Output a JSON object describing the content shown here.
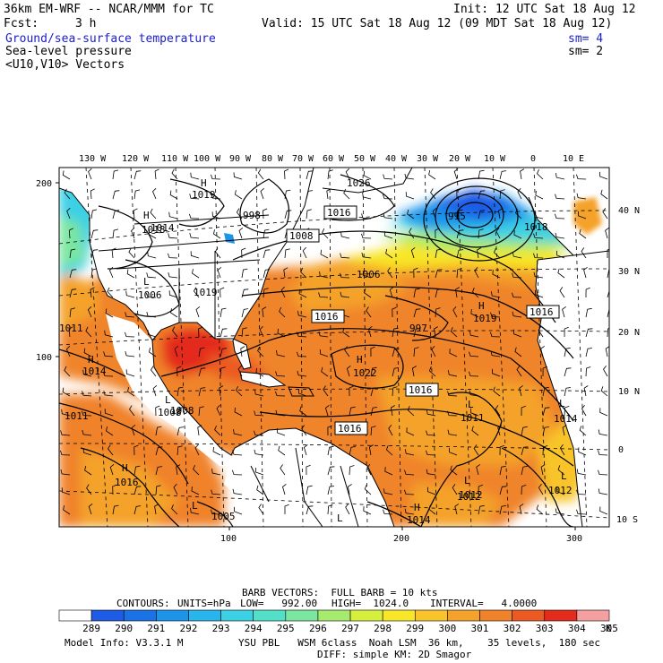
{
  "header": {
    "model": "36km EM-WRF -- NCAR/MMM for TC",
    "fcst_label": "Fcst:",
    "fcst_value": "3 h",
    "init": "Init: 12 UTC Sat 18 Aug 12",
    "valid": "Valid: 15 UTC Sat 18 Aug 12 (09 MDT Sat 18 Aug 12)",
    "fields": [
      {
        "name": "Ground/sea-surface temperature",
        "sm": "sm= 4",
        "color": "#1c1cd0"
      },
      {
        "name": "Sea-level pressure",
        "sm": "sm= 2",
        "color": "#000000"
      },
      {
        "name": "<U10,V10> Vectors",
        "sm": "",
        "color": "#000000"
      }
    ]
  },
  "map": {
    "top_lon_labels": [
      "130 W",
      "120 W",
      "110 W",
      "100 W",
      "90 W",
      "80 W",
      "70 W",
      "60 W",
      "50 W",
      "40 W",
      "30 W",
      "20 W",
      "10 W",
      "0",
      "10 E"
    ],
    "right_lat_labels": [
      "40 N",
      "30 N",
      "20 N",
      "10 N",
      "0",
      "10 S"
    ],
    "left_grid_labels": [
      "200",
      "100"
    ],
    "bottom_grid_labels": [
      "100",
      "200",
      "300"
    ],
    "pressure_highs": [
      {
        "label": "H",
        "value": "1019"
      },
      {
        "label": "H",
        "value": "1018"
      },
      {
        "label": "H",
        "value": "1019"
      },
      {
        "label": "H",
        "value": "1022"
      },
      {
        "label": "H",
        "value": "1014"
      },
      {
        "label": "H",
        "value": "1016"
      },
      {
        "label": "H",
        "value": "1014"
      }
    ],
    "pressure_lows": [
      {
        "label": "L",
        "value": "1006"
      },
      {
        "label": "L",
        "value": "1011"
      },
      {
        "label": "L",
        "value": "1008"
      },
      {
        "label": "L",
        "value": "1011"
      },
      {
        "label": "L",
        "value": "1014"
      },
      {
        "label": "L",
        "value": "1012"
      },
      {
        "label": "L",
        "value": "1012"
      },
      {
        "label": "L",
        "value": "1011"
      },
      {
        "label": "L",
        "value": "1005"
      },
      {
        "label": "L",
        "value": ""
      }
    ],
    "contour_labels": [
      "1026",
      "1016",
      "1008",
      "1006",
      "1016",
      "997",
      "1016",
      "1016",
      "1016",
      "998",
      "995",
      "1018",
      "1014",
      "1008",
      "1012",
      "1019"
    ]
  },
  "footer": {
    "barb_line": "BARB VECTORS:  FULL BARB = 10 kts",
    "contours_label": "CONTOURS:",
    "units": "UNITS=hPa",
    "low": "LOW=   992.00",
    "high": "HIGH=  1024.0",
    "interval": "INTERVAL=   4.0000",
    "colorbar_labels": [
      "289",
      "290",
      "291",
      "292",
      "293",
      "294",
      "295",
      "296",
      "297",
      "298",
      "299",
      "300",
      "301",
      "302",
      "303",
      "304",
      "305"
    ],
    "colorbar_colors": [
      "#ffffff",
      "#1e5ce6",
      "#1a72e6",
      "#1d94ea",
      "#28b4ec",
      "#3cd0e4",
      "#52e0c8",
      "#7ae6a0",
      "#a6ea6e",
      "#d6ee3c",
      "#f8e628",
      "#f8c42a",
      "#f4a22c",
      "#f0822a",
      "#ec5a24",
      "#e42c1c",
      "#f4a0a0"
    ],
    "unit_symbol": "K",
    "model_info": "Model Info: V3.3.1 M",
    "physics_line1": "YSU PBL   WSM 6class  Noah LSM  36 km,    35 levels,  180 sec",
    "physics_line2": "DIFF: simple KM: 2D Smagor"
  }
}
